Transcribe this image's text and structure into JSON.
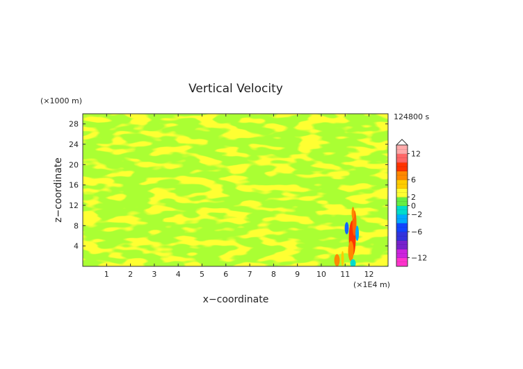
{
  "chart_data": {
    "type": "heatmap",
    "title": "Vertical Velocity",
    "xlabel": "x−coordinate",
    "ylabel": "z−coordinate",
    "x_unit": "(×1E4 m)",
    "y_unit": "(×1000 m)",
    "time_label": "124800 s",
    "xlim": [
      0,
      12.8
    ],
    "ylim": [
      0,
      30
    ],
    "x_ticks": [
      1,
      2,
      3,
      4,
      5,
      6,
      7,
      8,
      9,
      10,
      11,
      12
    ],
    "y_ticks": [
      4,
      8,
      12,
      16,
      20,
      24,
      28
    ],
    "colorbar": {
      "ticks": [
        12,
        6,
        2,
        0,
        -2,
        -6,
        -12
      ],
      "tick_labels": [
        "12",
        "6",
        "2",
        "0",
        "−2",
        "−6",
        "−12"
      ],
      "range": [
        -14,
        14
      ],
      "colors": [
        "#ff33cc",
        "#cc22dd",
        "#7722cc",
        "#3333dd",
        "#1144ff",
        "#00aaff",
        "#00ddcc",
        "#66ee44",
        "#ffff33",
        "#ffcc00",
        "#ff8800",
        "#ff3300",
        "#ff6666",
        "#ffaaaa"
      ]
    },
    "fields": {
      "background": "yellow-green banded noise, values near zero",
      "dominant_colors": [
        "#aaff33",
        "#ffff33"
      ],
      "features": [
        {
          "description": "strong updraft/downdraft plume",
          "x": 11.3,
          "z_range": [
            0,
            11
          ],
          "w_range": [
            -8,
            12
          ]
        },
        {
          "description": "weak bands sloping upward to the right",
          "z_range": [
            4,
            30
          ]
        }
      ]
    }
  }
}
